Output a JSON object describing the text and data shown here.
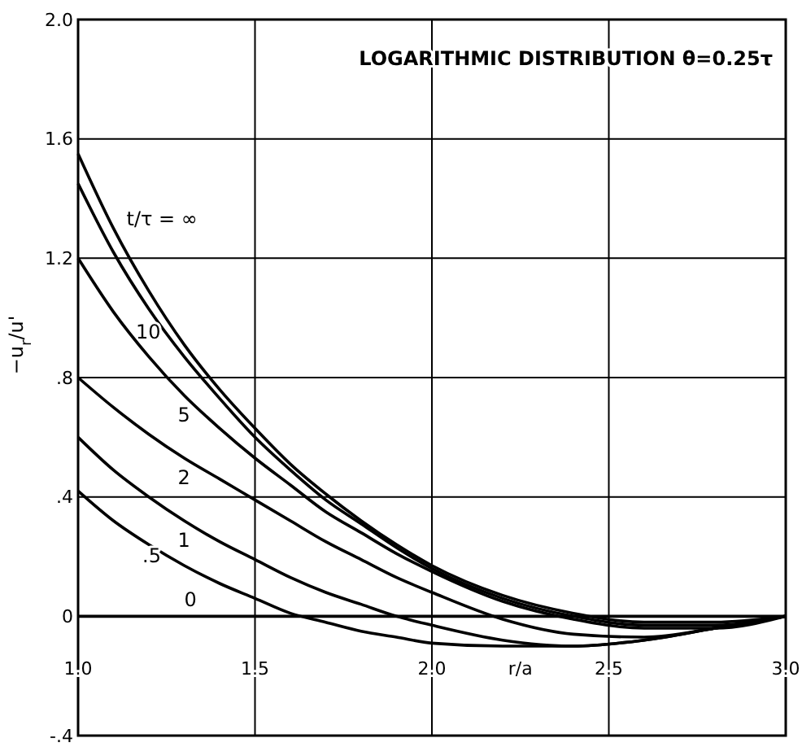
{
  "chart_data": {
    "type": "line",
    "title": "LOGARITHMIC   DISTRIBUTION θ=0.25τ",
    "xlabel": "r/a",
    "ylabel": "−u$_{r}$/u'",
    "x": [
      1.0,
      1.1,
      1.2,
      1.3,
      1.4,
      1.5,
      1.6,
      1.7,
      1.8,
      1.9,
      2.0,
      2.2,
      2.4,
      2.6,
      2.8,
      3.0
    ],
    "series": [
      {
        "name": "t/τ = ∞",
        "color": "#000000",
        "values": [
          1.55,
          1.3,
          1.09,
          0.91,
          0.76,
          0.63,
          0.51,
          0.41,
          0.32,
          0.24,
          0.17,
          0.07,
          0.01,
          -0.02,
          -0.02,
          0
        ]
      },
      {
        "name": "10",
        "color": "#000000",
        "values": [
          1.45,
          1.22,
          1.03,
          0.87,
          0.73,
          0.6,
          0.49,
          0.39,
          0.31,
          0.23,
          0.16,
          0.06,
          0.0,
          -0.03,
          -0.03,
          0
        ]
      },
      {
        "name": "5",
        "color": "#000000",
        "values": [
          1.2,
          1.02,
          0.87,
          0.74,
          0.63,
          0.53,
          0.44,
          0.35,
          0.28,
          0.21,
          0.15,
          0.05,
          -0.01,
          -0.04,
          -0.04,
          0
        ]
      },
      {
        "name": "2",
        "color": "#000000",
        "values": [
          0.8,
          0.7,
          0.61,
          0.53,
          0.46,
          0.39,
          0.32,
          0.25,
          0.19,
          0.13,
          0.08,
          -0.01,
          -0.06,
          -0.07,
          -0.04,
          0
        ]
      },
      {
        "name": "1",
        "color": "#000000",
        "values": [
          0.6,
          0.49,
          0.4,
          0.32,
          0.25,
          0.19,
          0.13,
          0.08,
          0.04,
          0.0,
          -0.03,
          -0.08,
          -0.1,
          -0.08,
          -0.04,
          0
        ]
      },
      {
        "name": ".5",
        "color": "#000000",
        "values": [
          0.42,
          0.32,
          0.24,
          0.17,
          0.11,
          0.06,
          0.01,
          -0.02,
          -0.05,
          -0.07,
          -0.09,
          -0.1,
          -0.1,
          -0.08,
          -0.04,
          0
        ]
      },
      {
        "name": "0",
        "color": "#000000",
        "values": [
          0,
          0,
          0,
          0,
          0,
          0,
          0,
          0,
          0,
          0,
          0,
          0,
          0,
          0,
          0,
          0
        ]
      }
    ],
    "xlim": [
      1.0,
      3.0
    ],
    "xticks": [
      {
        "value": 1.0,
        "label": "1.0"
      },
      1.5,
      {
        "value": 2.0,
        "label": "2.0"
      },
      2.5,
      {
        "value": 3.0,
        "label": "3.0"
      }
    ],
    "ylim": [
      -0.4,
      2.0
    ],
    "yticks": [
      {
        "value": -0.4,
        "label": "-.4"
      },
      0,
      {
        "value": 0.4,
        "label": ".4"
      },
      {
        "value": 0.8,
        "label": ".8"
      },
      1.2,
      1.6,
      {
        "value": 2.0,
        "label": "2.0"
      }
    ],
    "grid": true,
    "legend": false,
    "marker": "none",
    "line_style": "solid"
  }
}
